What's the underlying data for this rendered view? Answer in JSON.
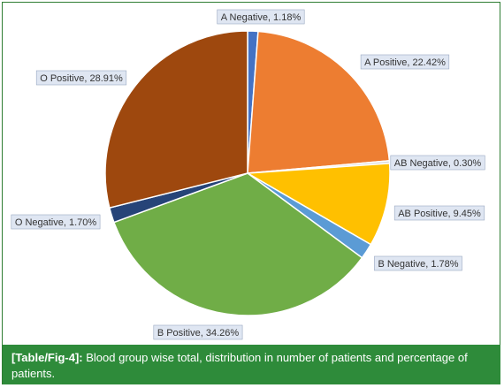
{
  "chart_data": {
    "type": "pie",
    "title": "",
    "slices": [
      {
        "label": "A Negative, 1.18%",
        "name": "A Negative",
        "value": 1.18,
        "color": "#4472c4"
      },
      {
        "label": "A Positive, 22.42%",
        "name": "A Positive",
        "value": 22.42,
        "color": "#ed7d31"
      },
      {
        "label": "AB Negative, 0.30%",
        "name": "AB Negative",
        "value": 0.3,
        "color": "#d9d9d9"
      },
      {
        "label": "AB Positive, 9.45%",
        "name": "AB Positive",
        "value": 9.45,
        "color": "#ffc000"
      },
      {
        "label": "B Negative, 1.78%",
        "name": "B Negative",
        "value": 1.78,
        "color": "#5b9bd5"
      },
      {
        "label": "B Positive, 34.26%",
        "name": "B Positive",
        "value": 34.26,
        "color": "#70ad47"
      },
      {
        "label": "O Negative, 1.70%",
        "name": "O Negative",
        "value": 1.7,
        "color": "#264478"
      },
      {
        "label": "O Positive, 28.91%",
        "name": "O Positive",
        "value": 28.91,
        "color": "#9e480e"
      }
    ]
  },
  "caption": {
    "ref": "[Table/Fig-4]:",
    "text": " Blood group wise total, distribution in number of patients and percentage of patients."
  }
}
